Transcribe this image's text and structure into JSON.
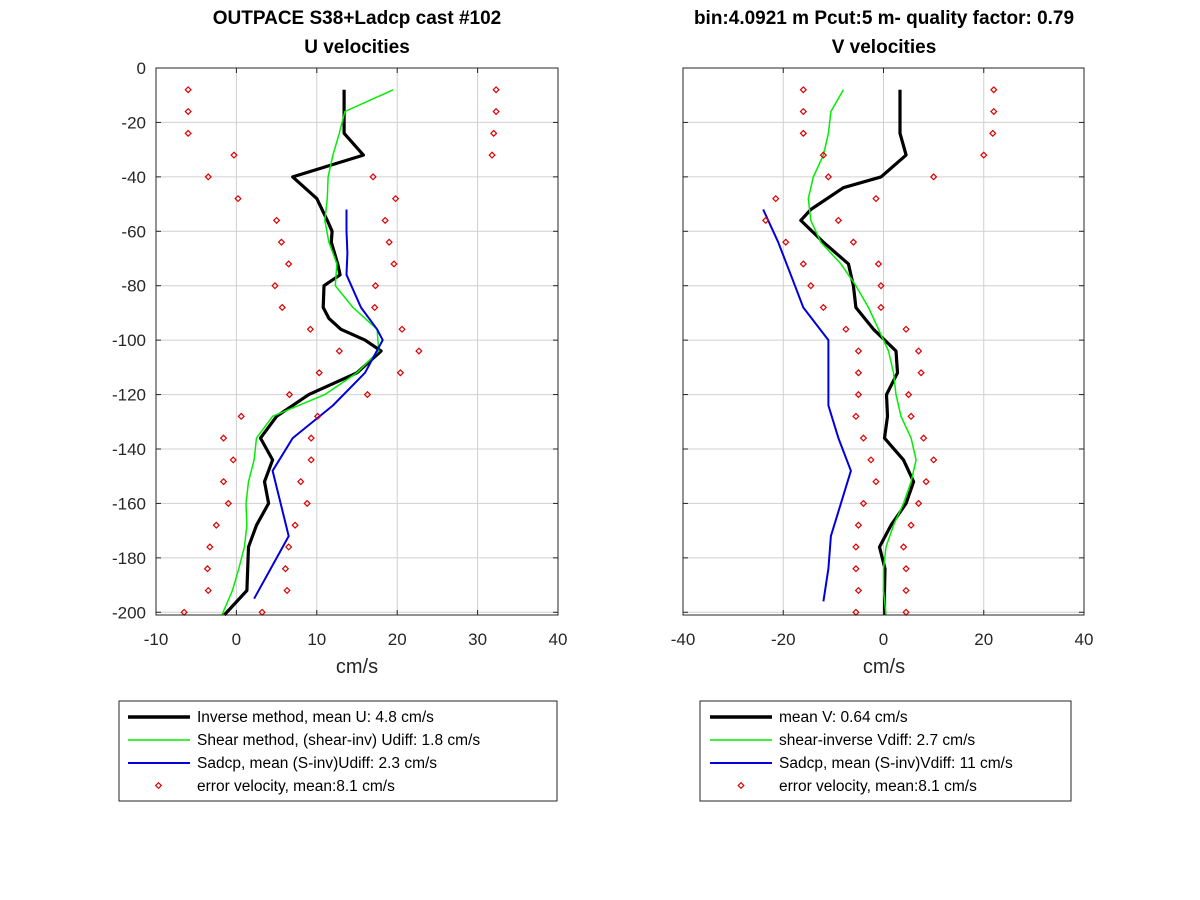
{
  "colors": {
    "inverse": "#000000",
    "shear": "#00ee00",
    "sadcp": "#0000dd",
    "error": "#dd0000",
    "grid": "#d0d0d0",
    "axis": "#262626"
  },
  "chart_data": [
    {
      "type": "line",
      "title_line1": "OUTPACE S38+Ladcp cast #102",
      "title_line2": "U velocities",
      "xlabel": "cm/s",
      "ylabel": "",
      "xlim": [
        -10,
        40
      ],
      "ylim": [
        -201,
        0
      ],
      "xticks": [
        -10,
        0,
        10,
        20,
        30,
        40
      ],
      "yticks": [
        0,
        -20,
        -40,
        -60,
        -80,
        -100,
        -120,
        -140,
        -160,
        -180,
        -200
      ],
      "grid": true,
      "series": [
        {
          "name": "Inverse method, mean U:  4.8 cm/s",
          "color_key": "inverse",
          "style": "thick",
          "points": [
            [
              13.4,
              -8
            ],
            [
              13.4,
              -24
            ],
            [
              15.8,
              -32
            ],
            [
              7.0,
              -40
            ],
            [
              8.5,
              -44
            ],
            [
              10.0,
              -48
            ],
            [
              11.3,
              -56
            ],
            [
              11.9,
              -60
            ],
            [
              11.8,
              -64
            ],
            [
              12.6,
              -72
            ],
            [
              12.9,
              -76
            ],
            [
              10.9,
              -80
            ],
            [
              10.8,
              -88
            ],
            [
              11.5,
              -92
            ],
            [
              13.0,
              -96
            ],
            [
              16.0,
              -100
            ],
            [
              18.0,
              -104
            ],
            [
              15.0,
              -112
            ],
            [
              12.0,
              -116
            ],
            [
              9.0,
              -120
            ],
            [
              5.0,
              -128
            ],
            [
              3.0,
              -136
            ],
            [
              4.5,
              -144
            ],
            [
              3.5,
              -152
            ],
            [
              4.0,
              -160
            ],
            [
              2.5,
              -168
            ],
            [
              1.5,
              -176
            ],
            [
              1.4,
              -184
            ],
            [
              1.3,
              -192
            ],
            [
              -1.5,
              -201
            ]
          ]
        },
        {
          "name": "Shear method, (shear-inv)  Udiff:  1.8 cm/s",
          "color_key": "shear",
          "style": "thin",
          "points": [
            [
              19.5,
              -8
            ],
            [
              13.5,
              -16
            ],
            [
              12.8,
              -24
            ],
            [
              12.0,
              -32
            ],
            [
              11.4,
              -40
            ],
            [
              11.3,
              -48
            ],
            [
              11.0,
              -56
            ],
            [
              11.5,
              -64
            ],
            [
              12.5,
              -72
            ],
            [
              12.3,
              -80
            ],
            [
              14.5,
              -88
            ],
            [
              17.5,
              -96
            ],
            [
              17.7,
              -104
            ],
            [
              15.0,
              -112
            ],
            [
              11.0,
              -120
            ],
            [
              4.5,
              -128
            ],
            [
              2.5,
              -136
            ],
            [
              2.2,
              -144
            ],
            [
              1.5,
              -152
            ],
            [
              1.2,
              -160
            ],
            [
              1.3,
              -168
            ],
            [
              1.0,
              -176
            ],
            [
              0.3,
              -184
            ],
            [
              -0.5,
              -192
            ],
            [
              -1.8,
              -201
            ]
          ]
        },
        {
          "name": "Sadcp, mean (S-inv)Udiff: 2.3 cm/s",
          "color_key": "sadcp",
          "style": "thin",
          "points": [
            [
              13.7,
              -52
            ],
            [
              13.7,
              -60
            ],
            [
              13.8,
              -68
            ],
            [
              13.7,
              -76
            ],
            [
              15.5,
              -88
            ],
            [
              17.5,
              -96
            ],
            [
              18.2,
              -100
            ],
            [
              16.0,
              -112
            ],
            [
              12.0,
              -124
            ],
            [
              7.0,
              -136
            ],
            [
              4.5,
              -148
            ],
            [
              6.5,
              -172
            ],
            [
              2.2,
              -195
            ]
          ]
        },
        {
          "name": "error velocity, mean:8.1 cm/s",
          "color_key": "error",
          "style": "markers",
          "points": [
            [
              -6.0,
              -8
            ],
            [
              32.3,
              -8
            ],
            [
              -6.0,
              -16
            ],
            [
              32.3,
              -16
            ],
            [
              -6.0,
              -24
            ],
            [
              32.0,
              -24
            ],
            [
              -0.3,
              -32
            ],
            [
              31.8,
              -32
            ],
            [
              -3.5,
              -40
            ],
            [
              17.0,
              -40
            ],
            [
              0.2,
              -48
            ],
            [
              19.8,
              -48
            ],
            [
              5.0,
              -56
            ],
            [
              18.5,
              -56
            ],
            [
              5.6,
              -64
            ],
            [
              19.0,
              -64
            ],
            [
              6.5,
              -72
            ],
            [
              19.6,
              -72
            ],
            [
              4.8,
              -80
            ],
            [
              17.3,
              -80
            ],
            [
              5.7,
              -88
            ],
            [
              17.2,
              -88
            ],
            [
              9.2,
              -96
            ],
            [
              20.6,
              -96
            ],
            [
              12.8,
              -104
            ],
            [
              22.7,
              -104
            ],
            [
              10.3,
              -112
            ],
            [
              20.4,
              -112
            ],
            [
              6.6,
              -120
            ],
            [
              16.3,
              -120
            ],
            [
              0.6,
              -128
            ],
            [
              10.1,
              -128
            ],
            [
              -1.6,
              -136
            ],
            [
              9.3,
              -136
            ],
            [
              -0.4,
              -144
            ],
            [
              9.3,
              -144
            ],
            [
              -1.6,
              -152
            ],
            [
              8.0,
              -152
            ],
            [
              -1.0,
              -160
            ],
            [
              8.8,
              -160
            ],
            [
              -2.5,
              -168
            ],
            [
              7.3,
              -168
            ],
            [
              -3.3,
              -176
            ],
            [
              6.5,
              -176
            ],
            [
              -3.6,
              -184
            ],
            [
              6.1,
              -184
            ],
            [
              -3.5,
              -192
            ],
            [
              6.3,
              -192
            ],
            [
              -6.5,
              -200
            ],
            [
              3.2,
              -200
            ]
          ]
        }
      ],
      "legend": {
        "position": "below",
        "entries": [
          "Inverse method, mean U:  4.8 cm/s",
          "Shear method, (shear-inv)  Udiff:  1.8 cm/s",
          "Sadcp, mean (S-inv)Udiff: 2.3 cm/s",
          "error velocity, mean:8.1 cm/s"
        ]
      }
    },
    {
      "type": "line",
      "title_line1": "bin:4.0921 m  Pcut:5 m- quality factor:  0.79",
      "title_line2": "V velocities",
      "xlabel": "cm/s",
      "ylabel": "",
      "xlim": [
        -40,
        40
      ],
      "ylim": [
        -201,
        0
      ],
      "xticks": [
        -40,
        -20,
        0,
        20,
        40
      ],
      "yticks": [
        0,
        -20,
        -40,
        -60,
        -80,
        -100,
        -120,
        -140,
        -160,
        -180,
        -200
      ],
      "show_ytick_labels": false,
      "grid": true,
      "series": [
        {
          "name": "mean V:  0.64 cm/s",
          "color_key": "inverse",
          "style": "thick",
          "points": [
            [
              3.3,
              -8
            ],
            [
              3.3,
              -20
            ],
            [
              3.3,
              -24
            ],
            [
              4.5,
              -32
            ],
            [
              -0.5,
              -40
            ],
            [
              -8.0,
              -44
            ],
            [
              -14.5,
              -52
            ],
            [
              -16.5,
              -56
            ],
            [
              -12.0,
              -64
            ],
            [
              -7.0,
              -72
            ],
            [
              -6.0,
              -80
            ],
            [
              -5.5,
              -88
            ],
            [
              -2.0,
              -96
            ],
            [
              2.5,
              -104
            ],
            [
              2.8,
              -112
            ],
            [
              0.6,
              -120
            ],
            [
              0.8,
              -128
            ],
            [
              0.2,
              -136
            ],
            [
              4.0,
              -144
            ],
            [
              6.0,
              -152
            ],
            [
              4.5,
              -160
            ],
            [
              1.5,
              -168
            ],
            [
              -0.8,
              -176
            ],
            [
              0.3,
              -184
            ],
            [
              0.2,
              -192
            ],
            [
              0.2,
              -201
            ]
          ]
        },
        {
          "name": "shear-inverse Vdiff:  2.7 cm/s",
          "color_key": "shear",
          "style": "thin",
          "points": [
            [
              -8.0,
              -8
            ],
            [
              -10.5,
              -16
            ],
            [
              -11.0,
              -24
            ],
            [
              -12.0,
              -32
            ],
            [
              -14.0,
              -40
            ],
            [
              -15.0,
              -48
            ],
            [
              -14.5,
              -56
            ],
            [
              -12.5,
              -64
            ],
            [
              -8.5,
              -72
            ],
            [
              -5.5,
              -80
            ],
            [
              -3.0,
              -88
            ],
            [
              -1.0,
              -96
            ],
            [
              1.0,
              -104
            ],
            [
              2.0,
              -112
            ],
            [
              2.5,
              -120
            ],
            [
              3.5,
              -128
            ],
            [
              5.5,
              -136
            ],
            [
              6.5,
              -144
            ],
            [
              5.5,
              -152
            ],
            [
              4.0,
              -160
            ],
            [
              2.0,
              -168
            ],
            [
              0.5,
              -176
            ],
            [
              0.0,
              -184
            ],
            [
              0.0,
              -192
            ],
            [
              0.5,
              -201
            ]
          ]
        },
        {
          "name": "Sadcp, mean (S-inv)Vdiff: 11 cm/s",
          "color_key": "sadcp",
          "style": "thin",
          "points": [
            [
              -24.0,
              -52
            ],
            [
              -21.0,
              -64
            ],
            [
              -18.5,
              -76
            ],
            [
              -16.0,
              -88
            ],
            [
              -11.0,
              -100
            ],
            [
              -11.0,
              -112
            ],
            [
              -11.0,
              -124
            ],
            [
              -9.0,
              -136
            ],
            [
              -6.5,
              -148
            ],
            [
              -8.5,
              -160
            ],
            [
              -10.5,
              -172
            ],
            [
              -11.0,
              -184
            ],
            [
              -12.0,
              -196
            ]
          ]
        },
        {
          "name": "error velocity, mean:8.1 cm/s",
          "color_key": "error",
          "style": "markers",
          "points": [
            [
              -16.0,
              -8
            ],
            [
              22.0,
              -8
            ],
            [
              -16.0,
              -16
            ],
            [
              22.0,
              -16
            ],
            [
              -16.0,
              -24
            ],
            [
              21.8,
              -24
            ],
            [
              -12.0,
              -32
            ],
            [
              20.0,
              -32
            ],
            [
              -11.0,
              -40
            ],
            [
              10.0,
              -40
            ],
            [
              -21.5,
              -48
            ],
            [
              -1.5,
              -48
            ],
            [
              -23.5,
              -56
            ],
            [
              -9.0,
              -56
            ],
            [
              -19.5,
              -64
            ],
            [
              -6.0,
              -64
            ],
            [
              -16.0,
              -72
            ],
            [
              -1.0,
              -72
            ],
            [
              -14.5,
              -80
            ],
            [
              -0.5,
              -80
            ],
            [
              -12.0,
              -88
            ],
            [
              -0.5,
              -88
            ],
            [
              -7.5,
              -96
            ],
            [
              4.5,
              -96
            ],
            [
              -5.0,
              -104
            ],
            [
              7.0,
              -104
            ],
            [
              -5.0,
              -112
            ],
            [
              7.5,
              -112
            ],
            [
              -5.0,
              -120
            ],
            [
              5.0,
              -120
            ],
            [
              -5.5,
              -128
            ],
            [
              5.5,
              -128
            ],
            [
              -4.0,
              -136
            ],
            [
              8.0,
              -136
            ],
            [
              -2.5,
              -144
            ],
            [
              10.0,
              -144
            ],
            [
              -1.5,
              -152
            ],
            [
              8.5,
              -152
            ],
            [
              -4.0,
              -160
            ],
            [
              7.0,
              -160
            ],
            [
              -5.0,
              -168
            ],
            [
              5.5,
              -168
            ],
            [
              -5.5,
              -176
            ],
            [
              4.0,
              -176
            ],
            [
              -5.5,
              -184
            ],
            [
              4.5,
              -184
            ],
            [
              -5.0,
              -192
            ],
            [
              4.5,
              -192
            ],
            [
              -5.5,
              -200
            ],
            [
              4.5,
              -200
            ]
          ]
        }
      ],
      "legend": {
        "position": "below",
        "entries": [
          "mean V:  0.64 cm/s",
          "shear-inverse Vdiff:  2.7 cm/s",
          "Sadcp, mean (S-inv)Vdiff: 11 cm/s",
          "error velocity, mean:8.1 cm/s"
        ]
      }
    }
  ]
}
